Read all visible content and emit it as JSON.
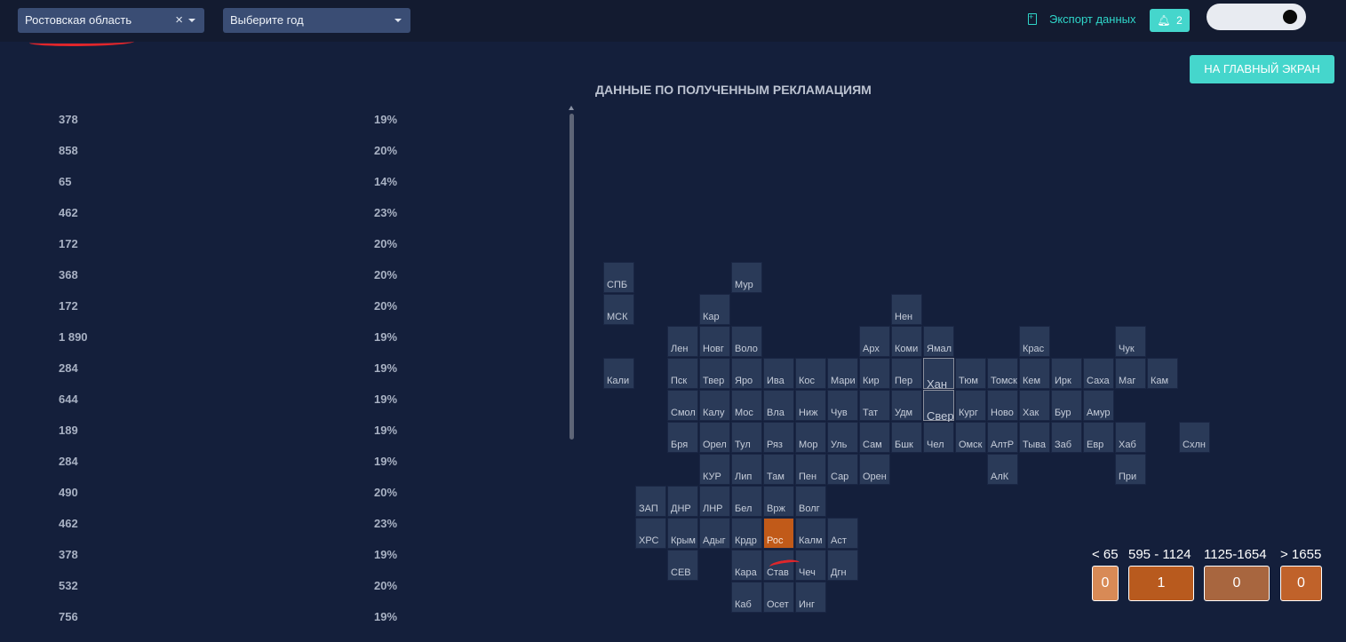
{
  "topbar": {
    "region_select": {
      "value": "Ростовская область"
    },
    "year_select": {
      "value": "Выберите год"
    },
    "export_label": "Экспорт данных",
    "notifications_count": "2",
    "colors": {
      "accent": "#45d6cc",
      "annotation": "#e0262b"
    }
  },
  "home_button": {
    "label": "НА ГЛАВНЫЙ ЭКРАН"
  },
  "title": "ДАННЫЕ ПО ПОЛУЧЕННЫМ РЕКЛАМАЦИЯМ",
  "list": [
    {
      "value": "378",
      "percent": "19%"
    },
    {
      "value": "858",
      "percent": "20%"
    },
    {
      "value": "65",
      "percent": "14%"
    },
    {
      "value": "462",
      "percent": "23%"
    },
    {
      "value": "172",
      "percent": "20%"
    },
    {
      "value": "368",
      "percent": "20%"
    },
    {
      "value": "172",
      "percent": "20%"
    },
    {
      "value": "1 890",
      "percent": "19%"
    },
    {
      "value": "284",
      "percent": "19%"
    },
    {
      "value": "644",
      "percent": "19%"
    },
    {
      "value": "189",
      "percent": "19%"
    },
    {
      "value": "284",
      "percent": "19%"
    },
    {
      "value": "490",
      "percent": "20%"
    },
    {
      "value": "462",
      "percent": "23%"
    },
    {
      "value": "378",
      "percent": "19%"
    },
    {
      "value": "532",
      "percent": "20%"
    },
    {
      "value": "756",
      "percent": "19%"
    }
  ],
  "map": {
    "selected": "Рос",
    "regions": [
      "СПБ",
      "Мур",
      "МСК",
      "Кар",
      "Нен",
      "Лен",
      "Новг",
      "Воло",
      "Арх",
      "Коми",
      "Ямал",
      "Крас",
      "Чук",
      "Кали",
      "Пск",
      "Твер",
      "Яро",
      "Ива",
      "Кос",
      "Мари",
      "Кир",
      "Пер",
      "Хан",
      "Тюм",
      "Томск",
      "Кем",
      "Ирк",
      "Саха",
      "Маг",
      "Кам",
      "Смол",
      "Калу",
      "Мос",
      "Вла",
      "Ниж",
      "Чув",
      "Тат",
      "Удм",
      "Свер",
      "Кург",
      "Ново",
      "Хак",
      "Бур",
      "Амур",
      "Бря",
      "Орел",
      "Тул",
      "Ряз",
      "Мор",
      "Уль",
      "Сам",
      "Бшк",
      "Чел",
      "Омск",
      "АлтР",
      "Тыва",
      "Заб",
      "Евр",
      "Хаб",
      "Схлн",
      "КУР",
      "Лип",
      "Там",
      "Пен",
      "Сар",
      "Орен",
      "АлК",
      "При",
      "ЗАП",
      "ДНР",
      "ЛНР",
      "Бел",
      "Врж",
      "Волг",
      "ХРС",
      "Крым",
      "Адыг",
      "Крдр",
      "Рос",
      "Калм",
      "Аст",
      "СЕВ",
      "Кара",
      "Став",
      "Чеч",
      "Дгн",
      "Каб",
      "Осет",
      "Инг"
    ]
  },
  "legend": [
    {
      "label": "< 65",
      "count": "0",
      "color": "#d88a56"
    },
    {
      "label": "595 - 1124",
      "count": "1",
      "color": "#b85a1e"
    },
    {
      "label": "1125-1654",
      "count": "0",
      "color": "#a8663f"
    },
    {
      "label": "> 1655",
      "count": "0",
      "color": "#c0622a"
    }
  ]
}
